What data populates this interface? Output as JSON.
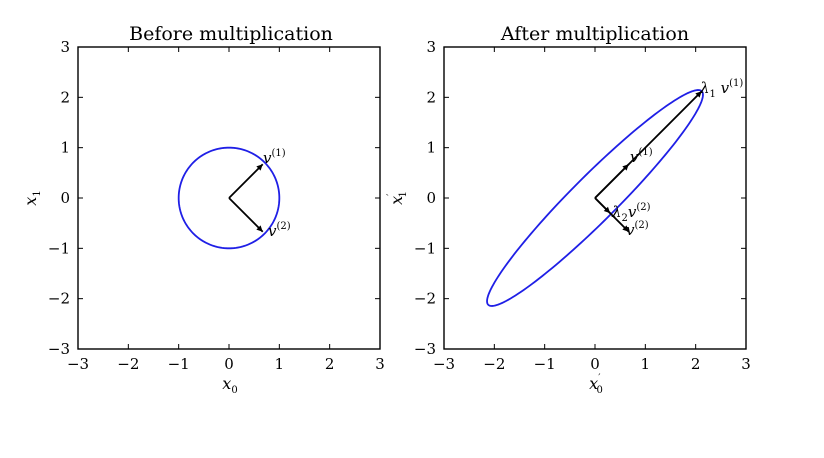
{
  "chart_data": [
    {
      "type": "line",
      "title": "Before multiplication",
      "xlabel": "x0",
      "ylabel": "x1",
      "xlim": [
        -3,
        3
      ],
      "ylim": [
        -3,
        3
      ],
      "xticks": [
        -3,
        -2,
        -1,
        0,
        1,
        2,
        3
      ],
      "yticks": [
        -3,
        -2,
        -1,
        0,
        1,
        2,
        3
      ],
      "xtick_labels": [
        "−3",
        "−2",
        "−1",
        "0",
        "1",
        "2",
        "3"
      ],
      "ytick_labels": [
        "−3",
        "−2",
        "−1",
        "0",
        "1",
        "2",
        "3"
      ],
      "grid": false,
      "ellipse": {
        "color": "#1f1fe6",
        "center": [
          0,
          0
        ],
        "semi_axes": [
          1,
          1
        ],
        "angle_deg": 0
      },
      "vectors": [
        {
          "name": "v(1)",
          "from": [
            0,
            0
          ],
          "to": [
            0.67,
            0.67
          ],
          "label_main": "v",
          "label_sup": "(1)"
        },
        {
          "name": "v(2)",
          "from": [
            0,
            0
          ],
          "to": [
            0.67,
            -0.67
          ],
          "label_main": "v",
          "label_sup": "(2)"
        }
      ]
    },
    {
      "type": "line",
      "title": "After multiplication",
      "xlabel": "x'0",
      "ylabel": "x'1",
      "xlim": [
        -3,
        3
      ],
      "ylim": [
        -3,
        3
      ],
      "xticks": [
        -3,
        -2,
        -1,
        0,
        1,
        2,
        3
      ],
      "yticks": [
        -3,
        -2,
        -1,
        0,
        1,
        2,
        3
      ],
      "xtick_labels": [
        "−3",
        "−2",
        "−1",
        "0",
        "1",
        "2",
        "3"
      ],
      "ytick_labels": [
        "−3",
        "−2",
        "−1",
        "0",
        "1",
        "2",
        "3"
      ],
      "grid": false,
      "ellipse": {
        "color": "#1f1fe6",
        "center": [
          0,
          0
        ],
        "semi_axes": [
          3,
          0.45
        ],
        "angle_deg": 45
      },
      "vectors": [
        {
          "name": "λ1 v(1)",
          "from": [
            0,
            0
          ],
          "to": [
            2.12,
            2.12
          ],
          "label_main": "λ",
          "label_sub": "1",
          "label_main2": "v",
          "label_sup": "(1)"
        },
        {
          "name": "v(1)",
          "from": [
            0,
            0
          ],
          "to": [
            0.67,
            0.67
          ],
          "label_main": "v",
          "label_sup": "(1)"
        },
        {
          "name": "v(2)",
          "from": [
            0,
            0
          ],
          "to": [
            0.67,
            -0.67
          ],
          "label_main": "v",
          "label_sup": "(2)"
        },
        {
          "name": "λ2 v(2)",
          "from": [
            0,
            0
          ],
          "to": [
            0.3,
            -0.3
          ],
          "label_main": "λ",
          "label_sub": "2",
          "label_main2": "v",
          "label_sup": "(2)"
        }
      ]
    }
  ]
}
